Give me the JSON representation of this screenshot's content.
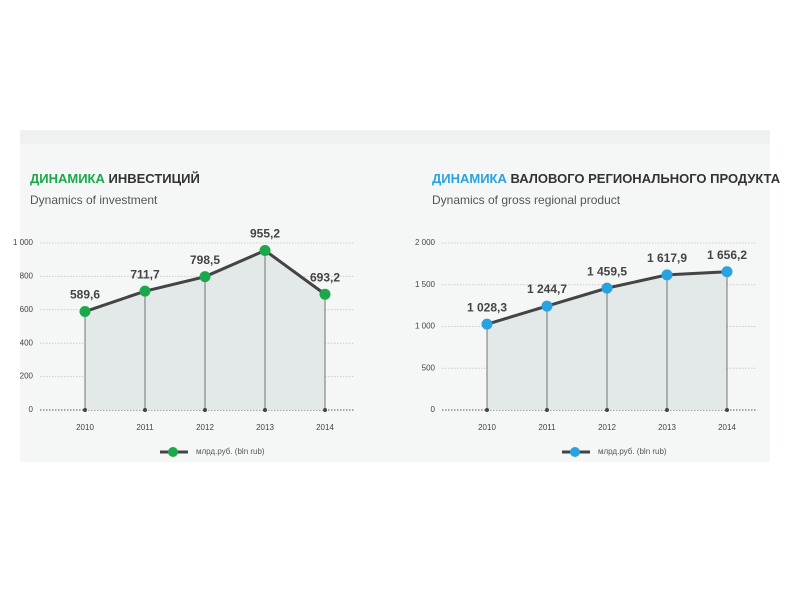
{
  "chart_data": [
    {
      "type": "line",
      "title_highlight": "ДИНАМИКА",
      "title": "ИНВЕСТИЦИЙ",
      "subtitle": "Dynamics of investment",
      "categories": [
        "2010",
        "2011",
        "2012",
        "2013",
        "2014"
      ],
      "series": [
        {
          "name": "млрд.руб. (bln rub)",
          "color": "#1aa84b",
          "values": [
            589.6,
            711.7,
            798.5,
            955.2,
            693.2
          ],
          "value_labels": [
            "589,6",
            "711,7",
            "798,5",
            "955,2",
            "693,2"
          ]
        }
      ],
      "ylim": [
        0,
        1000
      ],
      "yticks": [
        0,
        200,
        400,
        600,
        800,
        {
          "value": 1000,
          "label": "1 000"
        }
      ],
      "grid": true
    },
    {
      "type": "line",
      "title_highlight": "ДИНАМИКА",
      "title": "ВАЛОВОГО РЕГИОНАЛЬНОГО ПРОДУКТА",
      "subtitle": "Dynamics of gross regional product",
      "categories": [
        "2010",
        "2011",
        "2012",
        "2013",
        "2014"
      ],
      "series": [
        {
          "name": "млрд.руб. (bln rub)",
          "color": "#29a3e0",
          "values": [
            1028.3,
            1244.7,
            1459.5,
            1617.9,
            1656.2
          ],
          "value_labels": [
            "1 028,3",
            "1 244,7",
            "1 459,5",
            "1 617,9",
            "1 656,2"
          ]
        }
      ],
      "ylim": [
        0,
        2000
      ],
      "yticks": [
        0,
        500,
        {
          "value": 1000,
          "label": "1 000"
        },
        {
          "value": 1500,
          "label": "1 500"
        },
        {
          "value": 2000,
          "label": "2 000"
        }
      ],
      "grid": true
    }
  ]
}
